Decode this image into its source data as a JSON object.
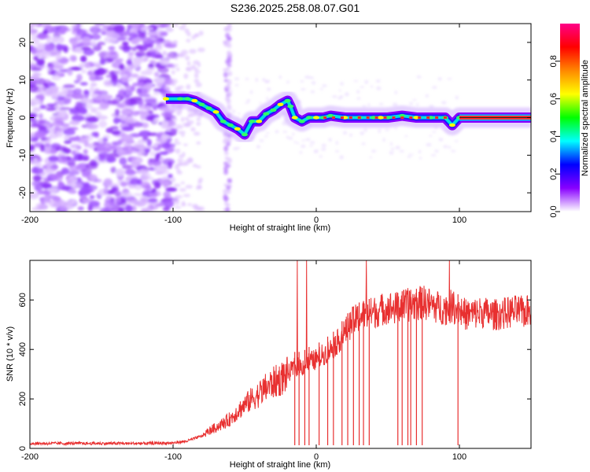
{
  "title": "S236.2025.258.08.07.G01",
  "chart_data": [
    {
      "type": "heatmap",
      "xlabel": "Height of straight line (km)",
      "ylabel": "Frequency (Hz)",
      "xlim": [
        -200,
        150
      ],
      "ylim": [
        -25,
        25
      ],
      "xticks": [
        -200,
        -100,
        0,
        100
      ],
      "xtick_labels": [
        "-200",
        "-100",
        "0",
        "100"
      ],
      "yticks": [
        -20,
        -10,
        0,
        10,
        20
      ],
      "ytick_labels": [
        "-20",
        "-10",
        "0",
        "10",
        "20"
      ],
      "colorbar": {
        "label": "Normalized spectral amplitude",
        "range": [
          0,
          1
        ],
        "ticks": [
          0.0,
          0.2,
          0.4,
          0.6,
          0.8
        ],
        "tick_labels": [
          "0.0",
          "0.2",
          "0.4",
          "0.6",
          "0.8"
        ],
        "colormap": [
          "#ffffff",
          "#8800ff",
          "#0000ff",
          "#00ffff",
          "#00ff00",
          "#ffff00",
          "#ff8800",
          "#ff0000",
          "#ff0088"
        ]
      },
      "ridge": {
        "name": "dominant frequency trace",
        "x": [
          -105,
          -95,
          -90,
          -85,
          -80,
          -75,
          -70,
          -65,
          -60,
          -55,
          -50,
          -45,
          -40,
          -35,
          -30,
          -25,
          -20,
          -18,
          -15,
          -10,
          -5,
          0,
          5,
          10,
          20,
          30,
          40,
          45,
          50,
          60,
          70,
          80,
          90,
          95,
          100,
          110,
          120,
          130,
          140,
          150
        ],
        "y": [
          5,
          5,
          5,
          4.5,
          3.5,
          2.5,
          1.5,
          -1,
          -2,
          -3,
          -4.5,
          -1,
          -1,
          1,
          2,
          3.5,
          4.5,
          3,
          0,
          -1,
          0,
          0,
          0,
          0.5,
          0,
          0,
          0,
          0,
          0,
          0.5,
          0,
          0,
          0,
          -2,
          0,
          0,
          0,
          0,
          0,
          0
        ]
      },
      "noise_region_x": [
        -200,
        -100
      ]
    },
    {
      "type": "line",
      "xlabel": "Height of straight line (km)",
      "ylabel": "SNR (10 * v/v)",
      "xlim": [
        -200,
        150
      ],
      "ylim": [
        0,
        760
      ],
      "xticks": [
        -200,
        -100,
        0,
        100
      ],
      "xtick_labels": [
        "-200",
        "-100",
        "0",
        "100"
      ],
      "yticks": [
        0,
        200,
        400,
        600
      ],
      "ytick_labels": [
        "0",
        "200",
        "400",
        "600"
      ],
      "series": [
        {
          "name": "SNR",
          "color": "#e83030",
          "x": [
            -200,
            -180,
            -160,
            -140,
            -120,
            -100,
            -90,
            -80,
            -75,
            -70,
            -65,
            -60,
            -55,
            -50,
            -45,
            -40,
            -35,
            -30,
            -25,
            -20,
            -15,
            -10,
            -5,
            0,
            5,
            10,
            15,
            20,
            25,
            30,
            35,
            40,
            45,
            50,
            55,
            60,
            65,
            70,
            75,
            80,
            85,
            90,
            95,
            100,
            105,
            110,
            115,
            120,
            125,
            130,
            135,
            140,
            145,
            150
          ],
          "values": [
            20,
            20,
            20,
            20,
            20,
            22,
            30,
            50,
            70,
            85,
            100,
            120,
            150,
            175,
            200,
            220,
            245,
            265,
            280,
            300,
            330,
            330,
            350,
            360,
            380,
            400,
            430,
            470,
            510,
            530,
            540,
            550,
            560,
            570,
            565,
            575,
            580,
            585,
            590,
            580,
            570,
            565,
            575,
            560,
            540,
            545,
            550,
            545,
            540,
            545,
            550,
            555,
            550,
            560
          ]
        }
      ],
      "dropouts_x": [
        -15,
        -12,
        -8,
        -5,
        2,
        8,
        12,
        18,
        22,
        26,
        30,
        33,
        37,
        57,
        60,
        64,
        66,
        70,
        74,
        99
      ]
    }
  ]
}
